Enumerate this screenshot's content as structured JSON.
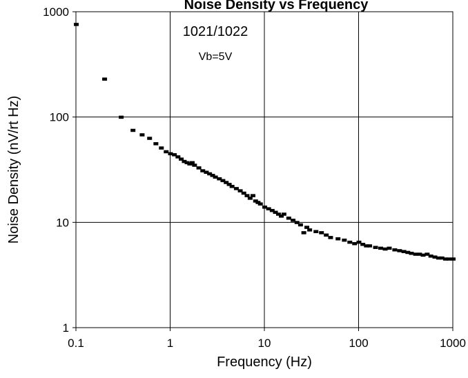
{
  "chart_data": {
    "type": "scatter",
    "title": "Noise Density vs Frequency",
    "xlabel": "Frequency (Hz)",
    "ylabel": "Noise Density (nV/rt Hz)",
    "x_scale": "log",
    "y_scale": "log",
    "xlim": [
      0.1,
      1000
    ],
    "ylim": [
      1,
      1000
    ],
    "x_ticks": [
      "0.1",
      "1",
      "10",
      "100",
      "1000"
    ],
    "y_ticks": [
      "1",
      "10",
      "100",
      "1000"
    ],
    "grid": true,
    "legend": "none",
    "annotations": [
      "1021/1022",
      "Vb=5V"
    ],
    "marker_color": "#000000",
    "series": [
      {
        "points": [
          [
            0.1,
            760
          ],
          [
            0.2,
            230
          ],
          [
            0.3,
            100
          ],
          [
            0.4,
            75
          ],
          [
            0.5,
            68
          ],
          [
            0.6,
            63
          ],
          [
            0.7,
            56
          ],
          [
            0.8,
            51
          ],
          [
            0.9,
            47
          ],
          [
            1.0,
            45
          ],
          [
            1.1,
            44
          ],
          [
            1.2,
            42
          ],
          [
            1.3,
            40
          ],
          [
            1.4,
            38
          ],
          [
            1.5,
            37
          ],
          [
            1.6,
            36
          ],
          [
            1.7,
            37
          ],
          [
            1.8,
            35
          ],
          [
            2.0,
            33
          ],
          [
            2.2,
            31
          ],
          [
            2.4,
            30
          ],
          [
            2.6,
            29
          ],
          [
            2.8,
            28
          ],
          [
            3.0,
            27
          ],
          [
            3.3,
            26
          ],
          [
            3.6,
            25
          ],
          [
            3.9,
            24
          ],
          [
            4.2,
            23
          ],
          [
            4.5,
            22
          ],
          [
            5.0,
            21
          ],
          [
            5.5,
            20
          ],
          [
            6.0,
            19
          ],
          [
            6.5,
            18
          ],
          [
            7.0,
            17
          ],
          [
            7.5,
            18
          ],
          [
            8.0,
            16
          ],
          [
            8.5,
            15.5
          ],
          [
            9.0,
            15
          ],
          [
            10,
            14
          ],
          [
            11,
            13.5
          ],
          [
            12,
            13
          ],
          [
            13,
            12.5
          ],
          [
            14,
            12
          ],
          [
            15,
            11.5
          ],
          [
            16,
            12
          ],
          [
            18,
            11
          ],
          [
            20,
            10.5
          ],
          [
            22,
            10
          ],
          [
            24,
            9.5
          ],
          [
            26,
            8
          ],
          [
            28,
            9
          ],
          [
            30,
            8.5
          ],
          [
            35,
            8.2
          ],
          [
            40,
            8
          ],
          [
            45,
            7.6
          ],
          [
            50,
            7.2
          ],
          [
            60,
            7
          ],
          [
            70,
            6.8
          ],
          [
            80,
            6.5
          ],
          [
            90,
            6.3
          ],
          [
            100,
            6.5
          ],
          [
            110,
            6.2
          ],
          [
            120,
            6.0
          ],
          [
            130,
            6.0
          ],
          [
            150,
            5.8
          ],
          [
            170,
            5.7
          ],
          [
            190,
            5.6
          ],
          [
            210,
            5.7
          ],
          [
            240,
            5.5
          ],
          [
            270,
            5.4
          ],
          [
            300,
            5.3
          ],
          [
            330,
            5.2
          ],
          [
            360,
            5.1
          ],
          [
            400,
            5.0
          ],
          [
            440,
            5.0
          ],
          [
            480,
            4.9
          ],
          [
            530,
            5.0
          ],
          [
            580,
            4.8
          ],
          [
            640,
            4.7
          ],
          [
            700,
            4.6
          ],
          [
            760,
            4.6
          ],
          [
            830,
            4.5
          ],
          [
            900,
            4.5
          ],
          [
            1000,
            4.5
          ]
        ]
      }
    ]
  }
}
